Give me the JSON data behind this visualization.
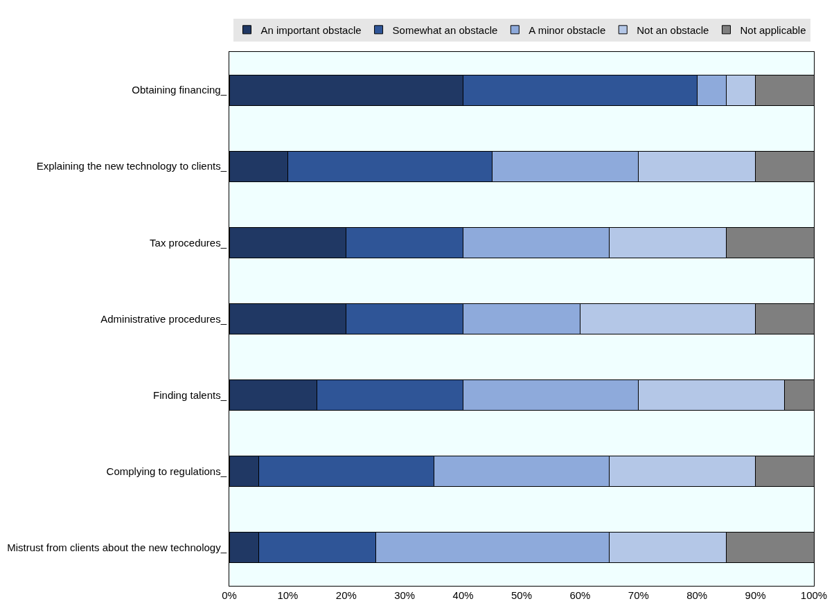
{
  "chart_data": {
    "type": "bar",
    "orientation": "horizontal",
    "stacked": true,
    "categories": [
      "Obtaining financing_",
      "Explaining the new technology to clients_",
      "Tax procedures_",
      "Administrative procedures_",
      "Finding talents_",
      "Complying to regulations_",
      "Mistrust from clients about the new technology_"
    ],
    "series": [
      {
        "name": "An important obstacle",
        "color": "#203864",
        "values": [
          40,
          10,
          20,
          20,
          15,
          5,
          5
        ]
      },
      {
        "name": "Somewhat an obstacle",
        "color": "#2f5597",
        "values": [
          40,
          35,
          20,
          20,
          25,
          30,
          20
        ]
      },
      {
        "name": "A minor obstacle",
        "color": "#8eaadb",
        "values": [
          5,
          25,
          25,
          20,
          30,
          30,
          40
        ]
      },
      {
        "name": "Not an obstacle",
        "color": "#b4c7e7",
        "values": [
          5,
          20,
          20,
          30,
          25,
          25,
          20
        ]
      },
      {
        "name": "Not applicable",
        "color": "#7f7f7f",
        "values": [
          10,
          10,
          15,
          10,
          5,
          10,
          15
        ]
      }
    ],
    "xlim": [
      0,
      100
    ],
    "xticks": [
      {
        "value": 0,
        "label": "0%"
      },
      {
        "value": 10,
        "label": "10%"
      },
      {
        "value": 20,
        "label": "20%"
      },
      {
        "value": 30,
        "label": "30%"
      },
      {
        "value": 40,
        "label": "40%"
      },
      {
        "value": 50,
        "label": "50%"
      },
      {
        "value": 60,
        "label": "60%"
      },
      {
        "value": 70,
        "label": "70%"
      },
      {
        "value": 80,
        "label": "80%"
      },
      {
        "value": 90,
        "label": "90%"
      },
      {
        "value": 100,
        "label": "100%"
      }
    ],
    "grid": false,
    "legend": "top"
  }
}
